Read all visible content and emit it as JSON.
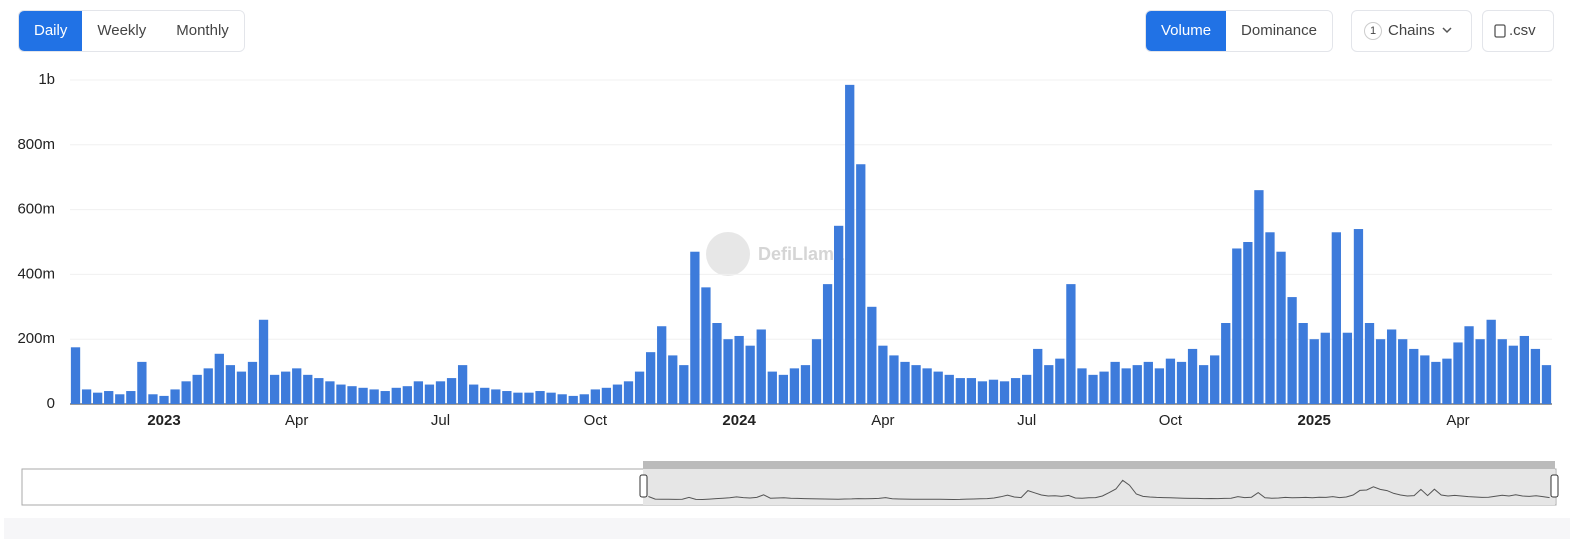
{
  "controls": {
    "granularity": [
      "Daily",
      "Weekly",
      "Monthly"
    ],
    "metric": [
      "Volume",
      "Dominance"
    ],
    "chains_count": "1",
    "chains": "Chains",
    "csv": ".csv",
    "watermark": "DefiLlama"
  },
  "chart_data": {
    "type": "bar",
    "color": "#3d7bdb",
    "grid": true,
    "ylim": [
      0,
      1000000000
    ],
    "yticks": [
      0,
      {
        "value": 200000000,
        "label": "200m"
      },
      {
        "value": 400000000,
        "label": "400m"
      },
      {
        "value": 600000000,
        "label": "600m"
      },
      {
        "value": 800000000,
        "label": "800m"
      },
      {
        "value": 1000000000,
        "label": "1b"
      }
    ],
    "categories": [
      null,
      null,
      null,
      null,
      null,
      null,
      null,
      null,
      "2023",
      null,
      null,
      null,
      null,
      null,
      null,
      null,
      null,
      null,
      null,
      null,
      "Apr",
      null,
      null,
      null,
      null,
      null,
      null,
      null,
      null,
      null,
      null,
      null,
      null,
      "Jul",
      null,
      null,
      null,
      null,
      null,
      null,
      null,
      null,
      null,
      null,
      null,
      null,
      null,
      "Oct",
      null,
      null,
      null,
      null,
      null,
      null,
      null,
      null,
      null,
      null,
      null,
      null,
      "2024",
      null,
      null,
      null,
      null,
      null,
      null,
      null,
      null,
      null,
      null,
      null,
      null,
      "Apr",
      null,
      null,
      null,
      null,
      null,
      null,
      null,
      null,
      null,
      null,
      null,
      null,
      "Jul",
      null,
      null,
      null,
      null,
      null,
      null,
      null,
      null,
      null,
      null,
      null,
      null,
      "Oct",
      null,
      null,
      null,
      null,
      null,
      null,
      null,
      null,
      null,
      null,
      null,
      null,
      "2025",
      null,
      null,
      null,
      null,
      null,
      null,
      null,
      null,
      null,
      null,
      null,
      null,
      "Apr",
      null,
      null,
      null,
      null,
      null,
      null,
      null,
      null
    ],
    "values": [
      175000000,
      45000000,
      35000000,
      40000000,
      30000000,
      40000000,
      130000000,
      30000000,
      25000000,
      45000000,
      70000000,
      90000000,
      110000000,
      155000000,
      120000000,
      100000000,
      130000000,
      260000000,
      90000000,
      100000000,
      110000000,
      90000000,
      80000000,
      70000000,
      60000000,
      55000000,
      50000000,
      45000000,
      40000000,
      50000000,
      55000000,
      70000000,
      60000000,
      70000000,
      80000000,
      120000000,
      60000000,
      50000000,
      45000000,
      40000000,
      35000000,
      35000000,
      40000000,
      35000000,
      30000000,
      25000000,
      30000000,
      45000000,
      50000000,
      60000000,
      70000000,
      100000000,
      160000000,
      240000000,
      150000000,
      120000000,
      470000000,
      360000000,
      250000000,
      200000000,
      210000000,
      180000000,
      230000000,
      100000000,
      90000000,
      110000000,
      120000000,
      200000000,
      370000000,
      550000000,
      985000000,
      740000000,
      300000000,
      180000000,
      150000000,
      130000000,
      120000000,
      110000000,
      100000000,
      90000000,
      80000000,
      80000000,
      70000000,
      75000000,
      70000000,
      80000000,
      90000000,
      170000000,
      120000000,
      140000000,
      370000000,
      110000000,
      90000000,
      100000000,
      130000000,
      110000000,
      120000000,
      130000000,
      110000000,
      140000000,
      130000000,
      170000000,
      120000000,
      150000000,
      250000000,
      480000000,
      500000000,
      660000000,
      530000000,
      470000000,
      330000000,
      250000000,
      200000000,
      220000000,
      530000000,
      220000000,
      540000000,
      250000000,
      200000000,
      230000000,
      200000000,
      170000000,
      150000000,
      130000000,
      140000000,
      190000000,
      240000000,
      200000000,
      260000000,
      200000000,
      180000000,
      210000000,
      170000000,
      120000000
    ]
  }
}
